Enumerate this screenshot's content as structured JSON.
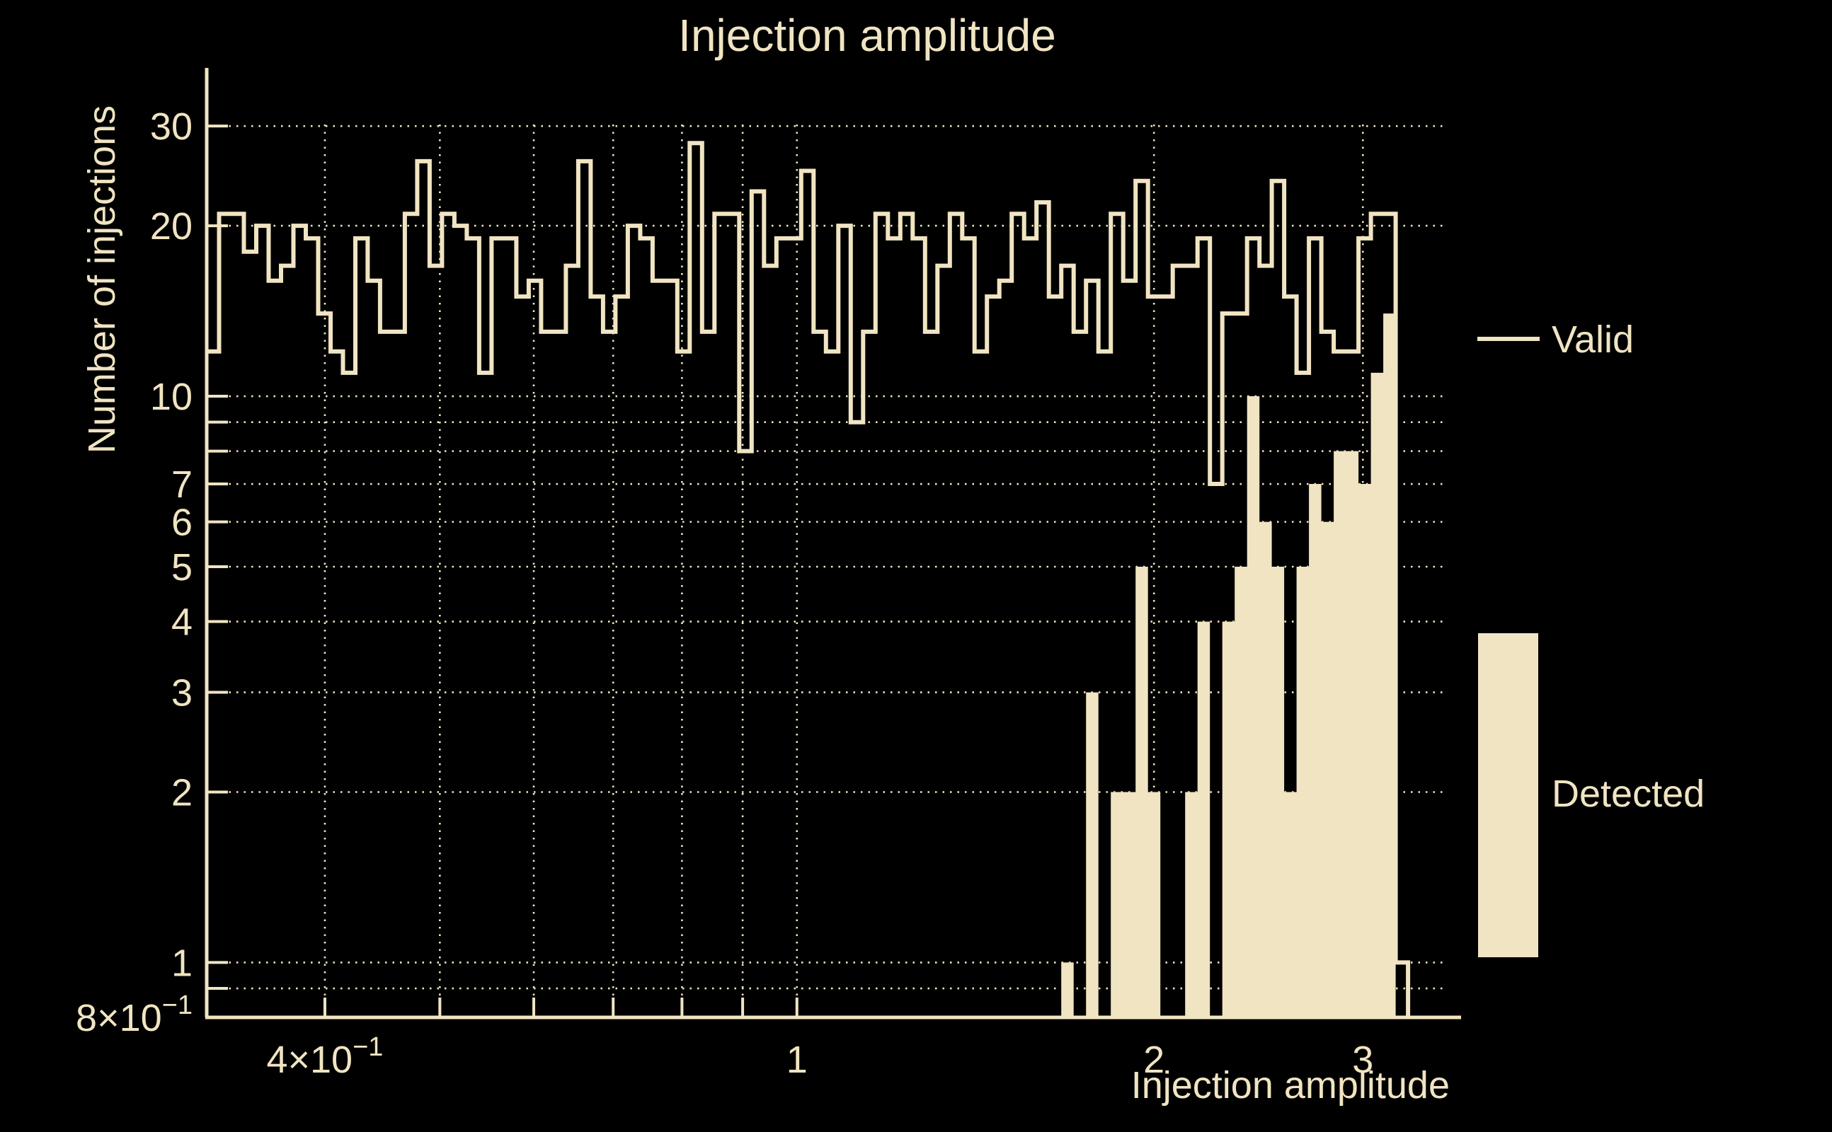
{
  "title": "Injection amplitude",
  "colors": {
    "background": "#000000",
    "foreground": "#f0e4c2"
  },
  "legend": {
    "valid_label": "Valid",
    "detected_label": "Detected"
  },
  "y_axis": {
    "title": "Number of injections",
    "scale": "log",
    "range": [
      0.8,
      38
    ],
    "tick_labels": [
      {
        "v": 30,
        "label": "30"
      },
      {
        "v": 20,
        "label": "20"
      },
      {
        "v": 10,
        "label": "10"
      },
      {
        "v": 7,
        "label": "7"
      },
      {
        "v": 6,
        "label": "6"
      },
      {
        "v": 5,
        "label": "5"
      },
      {
        "v": 4,
        "label": "4"
      },
      {
        "v": 3,
        "label": "3"
      },
      {
        "v": 2,
        "label": "2"
      },
      {
        "v": 1,
        "label": "1"
      },
      {
        "v": 0.8,
        "label": "8×10",
        "sup": "−1"
      }
    ],
    "grid_values": [
      30,
      20,
      10,
      9,
      8,
      7,
      6,
      5,
      4,
      3,
      2,
      1,
      0.9
    ]
  },
  "x_axis": {
    "title": "Injection amplitude",
    "scale": "log",
    "range": [
      0.318,
      3.63
    ],
    "tick_labels": [
      {
        "v": 0.4,
        "label": "4×10",
        "sup": "−1"
      },
      {
        "v": 1,
        "label": "1"
      },
      {
        "v": 2,
        "label": "2"
      },
      {
        "v": 3,
        "label": "3"
      }
    ],
    "grid_values": [
      0.4,
      0.5,
      0.6,
      0.7,
      0.8,
      0.9,
      1,
      2,
      3
    ]
  },
  "chart_data": {
    "type": "bar",
    "subtype": "log-log step histogram",
    "title": "Injection amplitude",
    "xlabel": "Injection amplitude",
    "ylabel": "Number of injections",
    "xlim": [
      0.318,
      3.63
    ],
    "ylim": [
      0.8,
      38
    ],
    "grid": true,
    "legend_position": "right",
    "bins": {
      "scale": "log",
      "start": 0.318,
      "end": 3.275,
      "count": 97
    },
    "series": [
      {
        "name": "Valid",
        "style": "step-outline",
        "values": [
          12,
          21,
          21,
          18,
          20,
          16,
          17,
          20,
          19,
          14,
          12,
          11,
          19,
          16,
          13,
          13,
          21,
          26,
          17,
          21,
          20,
          19,
          11,
          19,
          19,
          15,
          16,
          13,
          13,
          17,
          26,
          15,
          13,
          15,
          20,
          19,
          16,
          16,
          12,
          28,
          13,
          21,
          21,
          8,
          23,
          17,
          19,
          19,
          25,
          13,
          12,
          20,
          9,
          13,
          21,
          19,
          21,
          19,
          13,
          17,
          21,
          19,
          12,
          15,
          16,
          21,
          19,
          22,
          15,
          17,
          13,
          16,
          12,
          21,
          16,
          24,
          15,
          15,
          17,
          17,
          19,
          7,
          14,
          14,
          19,
          17,
          24,
          15,
          11,
          19,
          13,
          12,
          12,
          19,
          21,
          21,
          1
        ]
      },
      {
        "name": "Detected",
        "style": "filled-bar",
        "values": [
          0,
          0,
          0,
          0,
          0,
          0,
          0,
          0,
          0,
          0,
          0,
          0,
          0,
          0,
          0,
          0,
          0,
          0,
          0,
          0,
          0,
          0,
          0,
          0,
          0,
          0,
          0,
          0,
          0,
          0,
          0,
          0,
          0,
          0,
          0,
          0,
          0,
          0,
          0,
          0,
          0,
          0,
          0,
          0,
          0,
          0,
          0,
          0,
          0,
          0,
          0,
          0,
          0,
          0,
          0,
          0,
          0,
          0,
          0,
          0,
          0,
          0,
          0,
          0,
          0,
          0,
          0,
          0,
          0,
          1,
          0,
          3,
          0,
          2,
          2,
          5,
          2,
          0,
          0,
          2,
          4,
          0,
          4,
          5,
          10,
          6,
          5,
          2,
          5,
          7,
          6,
          8,
          8,
          7,
          11,
          14,
          0
        ]
      }
    ]
  }
}
